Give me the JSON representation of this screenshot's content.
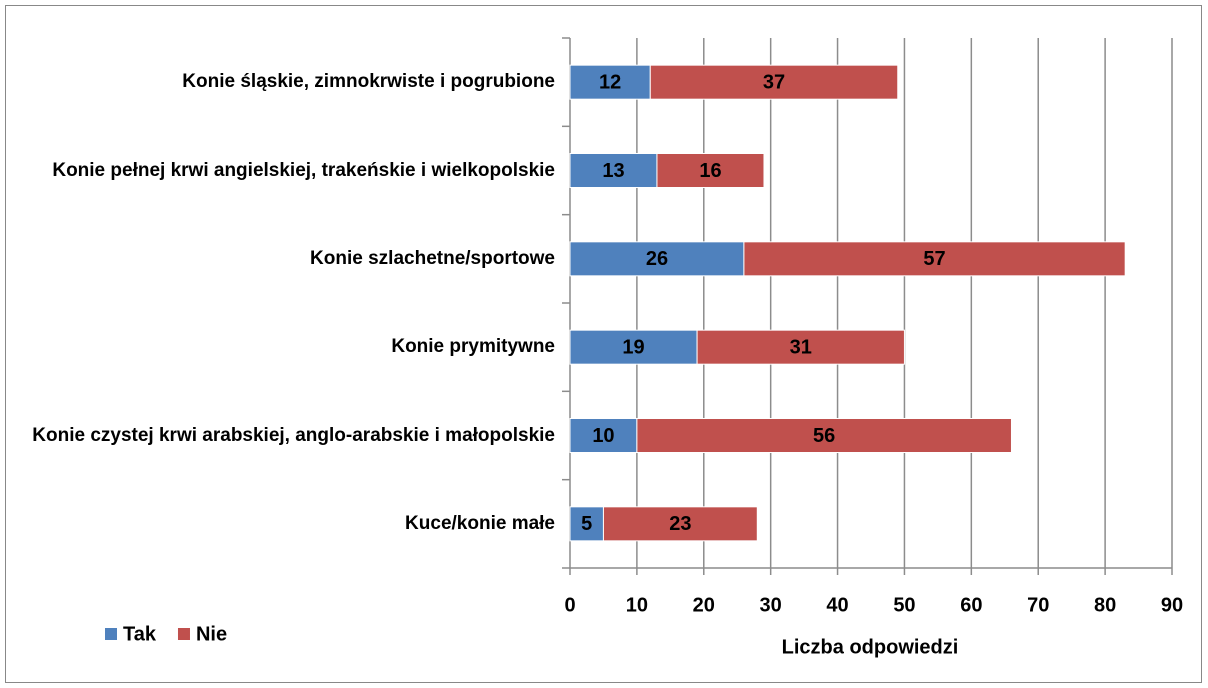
{
  "chart_data": {
    "type": "stacked_bar_horizontal",
    "categories": [
      "Konie śląskie, zimnokrwiste i pogrubione",
      "Konie pełnej krwi angielskiej, trakeńskie i wielkopolskie",
      "Konie szlachetne/sportowe",
      "Konie prymitywne",
      "Konie czystej krwi arabskiej, anglo-arabskie i małopolskie",
      "Kuce/konie małe"
    ],
    "series": [
      {
        "name": "Tak",
        "color": "#4f81bd",
        "values": [
          12,
          13,
          26,
          19,
          10,
          5
        ]
      },
      {
        "name": "Nie",
        "color": "#c0504d",
        "values": [
          37,
          16,
          57,
          31,
          56,
          23
        ]
      }
    ],
    "xlim": [
      0,
      90
    ],
    "xticks": [
      0,
      10,
      20,
      30,
      40,
      50,
      60,
      70,
      80,
      90
    ],
    "x_label": "Liczba odpowiedzi",
    "grid": true,
    "legend": "bottom-left"
  }
}
